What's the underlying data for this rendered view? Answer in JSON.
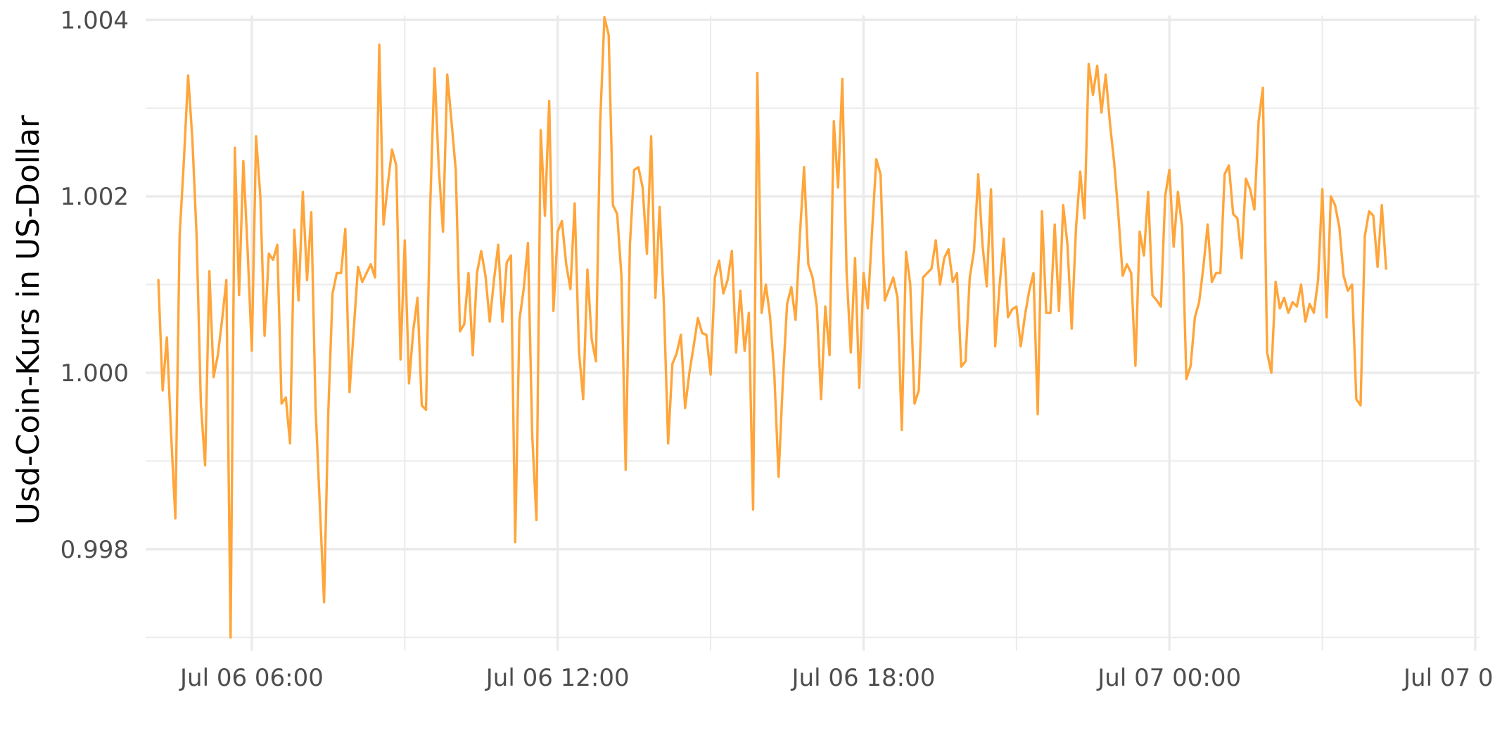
{
  "chart_data": {
    "type": "line",
    "title": "",
    "xlabel": "",
    "ylabel": "Usd-Coin-Kurs in US-Dollar",
    "x_start": "2024-07-06T04:10",
    "x_step_minutes": 5,
    "x_end": "2024-07-07T04:10",
    "xlim": [
      "2024-07-06T03:55",
      "2024-07-07T06:05"
    ],
    "ylim": [
      0.99685,
      1.00405
    ],
    "x_ticks": [
      {
        "value": "2024-07-06T06:00",
        "label": "Jul 06 06:00"
      },
      {
        "value": "2024-07-06T12:00",
        "label": "Jul 06 12:00"
      },
      {
        "value": "2024-07-06T18:00",
        "label": "Jul 06 18:00"
      },
      {
        "value": "2024-07-07T00:00",
        "label": "Jul 07 00:00"
      },
      {
        "value": "2024-07-07T06:00",
        "label": "Jul 07 06:00"
      }
    ],
    "y_ticks": [
      {
        "value": 0.998,
        "label": "0.998"
      },
      {
        "value": 1.0,
        "label": "1.000"
      },
      {
        "value": 1.002,
        "label": "1.002"
      },
      {
        "value": 1.004,
        "label": "1.004"
      }
    ],
    "grid": true,
    "line_color": "#FFA53A",
    "series": [
      {
        "values": [
          1.00105,
          0.9998,
          1.0004,
          0.9993,
          0.99835,
          1.00155,
          1.0024,
          1.00337,
          1.00265,
          1.00155,
          0.99965,
          0.99895,
          1.00115,
          0.99995,
          1.0002,
          1.0006,
          1.00105,
          0.997,
          1.00255,
          1.00088,
          1.0024,
          1.0014,
          1.00025,
          1.00268,
          1.002,
          1.00042,
          1.00135,
          1.00128,
          1.00145,
          0.99965,
          0.99972,
          0.9992,
          1.00162,
          1.00082,
          1.00205,
          1.00105,
          1.00182,
          0.9996,
          0.9985,
          0.9974,
          0.99955,
          1.0009,
          1.00113,
          1.00113,
          1.00163,
          0.99978,
          1.0005,
          1.0012,
          1.00103,
          1.00113,
          1.00123,
          1.00108,
          1.00372,
          1.00168,
          1.00213,
          1.00253,
          1.00235,
          1.00015,
          1.0015,
          0.99988,
          1.00048,
          1.00085,
          0.99963,
          0.99958,
          1.0019,
          1.00345,
          1.00233,
          1.0016,
          1.00338,
          1.00285,
          1.0023,
          1.00047,
          1.00055,
          1.00113,
          1.0002,
          1.00113,
          1.00138,
          1.0011,
          1.00058,
          1.00105,
          1.00145,
          1.00058,
          1.00125,
          1.00133,
          0.99808,
          1.0006,
          1.00095,
          1.00147,
          0.9993,
          0.99833,
          1.00275,
          1.00178,
          1.00308,
          1.0007,
          1.0016,
          1.00172,
          1.00123,
          1.00095,
          1.00192,
          1.00025,
          0.9997,
          1.00117,
          1.00038,
          1.00013,
          1.00283,
          1.00403,
          1.00383,
          1.0019,
          1.0018,
          1.0011,
          0.9989,
          1.00145,
          1.0023,
          1.00233,
          1.0021,
          1.00135,
          1.00268,
          1.00085,
          1.00188,
          1.00077,
          0.9992,
          1.0001,
          1.00022,
          1.00043,
          0.9996,
          1.0,
          1.0003,
          1.00062,
          1.00045,
          1.00043,
          0.99998,
          1.00108,
          1.00127,
          1.0009,
          1.00105,
          1.00138,
          1.00023,
          1.00093,
          1.00025,
          1.00068,
          0.99845,
          1.0034,
          1.00068,
          1.001,
          1.00063,
          0.99998,
          0.99882,
          0.9999,
          1.00078,
          1.00097,
          1.0006,
          1.00155,
          1.00233,
          1.00123,
          1.00108,
          1.00075,
          0.9997,
          1.00075,
          1.0002,
          1.00285,
          1.0021,
          1.00333,
          1.00115,
          1.00023,
          1.0013,
          0.99983,
          1.00113,
          1.00073,
          1.0016,
          1.00242,
          1.00225,
          1.00082,
          1.00095,
          1.00108,
          1.00085,
          0.99935,
          1.00137,
          1.001,
          0.99965,
          0.9998,
          1.00108,
          1.00113,
          1.00118,
          1.0015,
          1.001,
          1.0013,
          1.0014,
          1.00103,
          1.00113,
          1.00007,
          1.00013,
          1.00108,
          1.00138,
          1.00225,
          1.00145,
          1.00098,
          1.00208,
          1.0003,
          1.00097,
          1.00152,
          1.00063,
          1.00072,
          1.00075,
          1.0003,
          1.00065,
          1.00093,
          1.00113,
          0.99953,
          1.00183,
          1.00068,
          1.00068,
          1.00168,
          1.0007,
          1.0019,
          1.00145,
          1.0005,
          1.00163,
          1.00228,
          1.00175,
          1.0035,
          1.00315,
          1.00348,
          1.00295,
          1.00338,
          1.00283,
          1.00238,
          1.00178,
          1.0011,
          1.00123,
          1.00113,
          1.00008,
          1.0016,
          1.00133,
          1.00205,
          1.00088,
          1.00082,
          1.00075,
          1.002,
          1.0023,
          1.00143,
          1.00205,
          1.00165,
          0.99993,
          1.00008,
          1.00063,
          1.0008,
          1.0012,
          1.00168,
          1.00103,
          1.00113,
          1.00113,
          1.00225,
          1.00235,
          1.0018,
          1.00175,
          1.0013,
          1.0022,
          1.00208,
          1.00185,
          1.00285,
          1.00323,
          1.00023,
          1.0,
          1.00103,
          1.00073,
          1.00085,
          1.00068,
          1.0008,
          1.00075,
          1.001,
          1.00058,
          1.00078,
          1.00068,
          1.00105,
          1.00208,
          1.00063,
          1.002,
          1.0019,
          1.00165,
          1.0011,
          1.00093,
          1.001,
          0.9997,
          0.99963,
          1.00155,
          1.00183,
          1.00178,
          1.0012,
          1.0019,
          1.00118
        ]
      }
    ]
  }
}
